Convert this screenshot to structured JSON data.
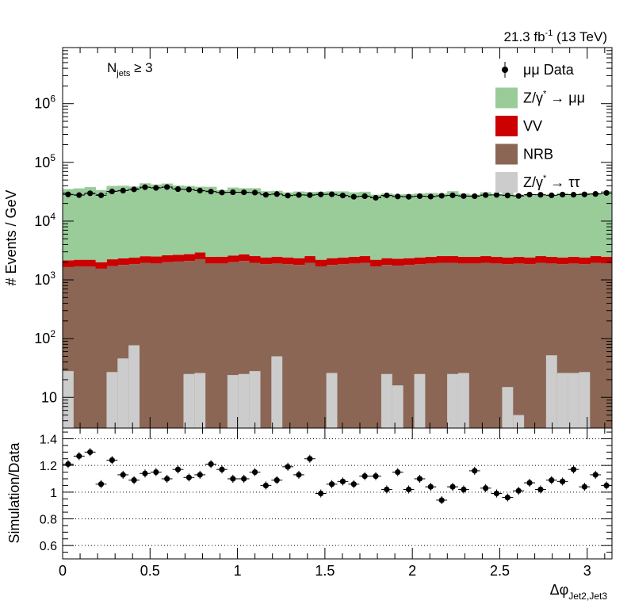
{
  "header": {
    "lumi_main": "21.3 fb",
    "lumi_exp": "-1",
    "lumi_energy": " (13 TeV)"
  },
  "annotation": {
    "njets_main": "N",
    "njets_sub": "jets",
    "njets_cond": " ≥ 3"
  },
  "legend": [
    {
      "key": "data",
      "label": "μμ Data",
      "kind": "marker",
      "color": "#000000"
    },
    {
      "key": "zmumu",
      "label_base": "Z/γ",
      "label_sup": "*",
      "label_rest": " → μμ",
      "kind": "box",
      "color": "#99cc99"
    },
    {
      "key": "vv",
      "label": "VV",
      "kind": "box",
      "color": "#cc0000"
    },
    {
      "key": "nrb",
      "label": "NRB",
      "kind": "box",
      "color": "#8b6655"
    },
    {
      "key": "ztautau",
      "label_base": "Z/γ",
      "label_sup": "*",
      "label_rest": " → ττ",
      "kind": "box",
      "color": "#cccccc"
    }
  ],
  "colors": {
    "zmumu": "#99cc99",
    "vv": "#cc0000",
    "nrb": "#8b6655",
    "ztautau": "#cccccc",
    "data": "#000000"
  },
  "chart_data": [
    {
      "type": "bar",
      "stacked": true,
      "ylabel": "# Events / GeV",
      "yscale": "log",
      "ylim": [
        3,
        9000000
      ],
      "xlim": [
        0,
        3.1416
      ],
      "ytick_labels": [
        "10",
        "10",
        "10",
        "10",
        "10",
        "10"
      ],
      "ytick_exps": [
        "",
        "2",
        "3",
        "4",
        "5",
        "6"
      ],
      "ytick_values": [
        10,
        100,
        1000,
        10000,
        100000,
        1000000
      ],
      "bins": 50,
      "series": [
        {
          "name": "Z/γ* → ττ",
          "key": "ztautau",
          "values": [
            28,
            0,
            0,
            0,
            27,
            46,
            77,
            0,
            0,
            0,
            0,
            25,
            26,
            0,
            0,
            24,
            25,
            28,
            0,
            50,
            0,
            0,
            0,
            0,
            26,
            0,
            0,
            0,
            0,
            25,
            16,
            0,
            25,
            0,
            0,
            25,
            26,
            0,
            0,
            0,
            15,
            5,
            0,
            0,
            52,
            26,
            26,
            27,
            0,
            0
          ]
        },
        {
          "name": "NRB",
          "key": "nrb",
          "values": [
            1650,
            1700,
            1680,
            1550,
            1720,
            1800,
            1850,
            1950,
            1900,
            2000,
            2050,
            2100,
            2250,
            1900,
            1900,
            2000,
            2100,
            1950,
            1850,
            1900,
            1850,
            1800,
            1950,
            1700,
            1800,
            1850,
            1900,
            1950,
            1700,
            1800,
            1750,
            1800,
            1850,
            1900,
            1950,
            1950,
            1900,
            1900,
            1950,
            1900,
            1850,
            1900,
            1850,
            1950,
            1900,
            1850,
            1900,
            1850,
            1950,
            1900
          ]
        },
        {
          "name": "VV",
          "key": "vv",
          "values": [
            500,
            500,
            520,
            450,
            520,
            530,
            540,
            580,
            600,
            620,
            620,
            640,
            680,
            570,
            580,
            600,
            620,
            590,
            560,
            580,
            560,
            540,
            590,
            500,
            540,
            550,
            570,
            590,
            500,
            540,
            530,
            540,
            560,
            570,
            590,
            590,
            570,
            570,
            590,
            570,
            560,
            570,
            560,
            590,
            570,
            560,
            570,
            560,
            590,
            570
          ]
        },
        {
          "name": "Z/γ* → μμ",
          "key": "zmumu",
          "values": [
            33000,
            33900,
            35700,
            31800,
            37500,
            37700,
            36500,
            41500,
            39500,
            41000,
            37700,
            37000,
            35600,
            35900,
            31200,
            34700,
            33600,
            33800,
            29900,
            30400,
            28400,
            29600,
            28800,
            29400,
            29800,
            29700,
            28500,
            29100,
            26000,
            27300,
            26100,
            26600,
            27100,
            27700,
            27100,
            29800,
            26900,
            25700,
            28500,
            25500,
            28200,
            25800,
            26300,
            25000,
            25000,
            27700,
            25800,
            27800,
            27200,
            30100
          ]
        }
      ],
      "data_series": {
        "name": "μμ Data",
        "values": [
          28500,
          27700,
          29800,
          27500,
          32000,
          33100,
          34700,
          37800,
          36800,
          38000,
          35100,
          34500,
          33100,
          31800,
          30700,
          31000,
          30900,
          30600,
          28100,
          28900,
          27200,
          27900,
          27700,
          28500,
          28600,
          27300,
          26000,
          26600,
          25000,
          27400,
          26300,
          26000,
          26600,
          26200,
          27000,
          27500,
          26700,
          26600,
          27800,
          28000,
          27300,
          26800,
          28300,
          28100,
          27500,
          28300,
          28200,
          28500,
          29000,
          30200
        ]
      }
    },
    {
      "type": "scatter",
      "ylabel": "Simulation/Data",
      "xlabel_main": "Δφ",
      "xlabel_sub": "Jet2,Jet3",
      "xlim": [
        0,
        3.1416
      ],
      "ylim": [
        0.5,
        1.48
      ],
      "ytick_values": [
        0.6,
        0.8,
        1.0,
        1.2,
        1.4
      ],
      "ytick_labels": [
        "0.6",
        "0.8",
        "1",
        "1.2",
        "1.4"
      ],
      "xtick_values": [
        0,
        0.5,
        1,
        1.5,
        2,
        2.5,
        3
      ],
      "xtick_labels": [
        "0",
        "0.5",
        "1",
        "1.5",
        "2",
        "2.5",
        "3"
      ],
      "gridlines_y": [
        0.6,
        0.8,
        1.0,
        1.2,
        1.4
      ],
      "values": [
        1.21,
        1.27,
        1.3,
        1.06,
        1.24,
        1.13,
        1.09,
        1.14,
        1.15,
        1.1,
        1.17,
        1.11,
        1.13,
        1.21,
        1.17,
        1.1,
        1.1,
        1.15,
        1.05,
        1.09,
        1.19,
        1.13,
        1.25,
        0.99,
        1.06,
        1.08,
        1.06,
        1.12,
        1.12,
        1.02,
        1.15,
        1.02,
        1.1,
        1.04,
        0.94,
        1.04,
        1.02,
        1.16,
        1.03,
        0.99,
        0.96,
        1.01,
        1.07,
        1.02,
        1.09,
        1.08,
        1.17,
        1.04,
        1.13,
        1.05
      ],
      "errors": [
        0.03,
        0.03,
        0.03,
        0.03,
        0.03,
        0.03,
        0.03,
        0.03,
        0.03,
        0.03,
        0.03,
        0.03,
        0.03,
        0.03,
        0.03,
        0.03,
        0.03,
        0.03,
        0.03,
        0.03,
        0.03,
        0.03,
        0.03,
        0.03,
        0.03,
        0.03,
        0.03,
        0.03,
        0.03,
        0.03,
        0.03,
        0.03,
        0.03,
        0.03,
        0.03,
        0.03,
        0.03,
        0.03,
        0.03,
        0.03,
        0.03,
        0.03,
        0.03,
        0.03,
        0.03,
        0.03,
        0.03,
        0.03,
        0.03,
        0.03
      ]
    }
  ]
}
